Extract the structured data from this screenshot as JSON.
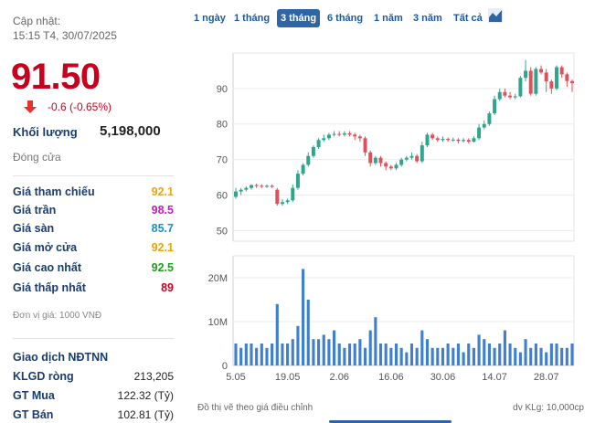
{
  "header": {
    "updated_label": "Cập nhật:",
    "updated_time": "15:15 T4, 30/07/2025"
  },
  "quote": {
    "price": "91.50",
    "change": "-0.6 (-0.65%)",
    "volume_label": "Khối lượng",
    "volume_value": "5,198,000",
    "status": "Đóng cửa"
  },
  "prices": [
    {
      "label": "Giá tham chiếu",
      "value": "92.1",
      "color": "#f0a500"
    },
    {
      "label": "Giá trần",
      "value": "98.5",
      "color": "#c41bc4"
    },
    {
      "label": "Giá sàn",
      "value": "85.7",
      "color": "#1a8fc7"
    },
    {
      "label": "Giá mở cửa",
      "value": "92.1",
      "color": "#f0a500"
    },
    {
      "label": "Giá cao nhất",
      "value": "92.5",
      "color": "#1e9e1e"
    },
    {
      "label": "Giá thấp nhất",
      "value": "89",
      "color": "#c8001e"
    }
  ],
  "unit_note": "Đơn vị giá: 1000 VNĐ",
  "foreign": {
    "title": "Giao dịch NĐTNN",
    "rows": [
      {
        "label": "KLGD ròng",
        "value": "213,205"
      },
      {
        "label": "GT Mua",
        "value": "122.32 (Tỷ)"
      },
      {
        "label": "GT Bán",
        "value": "102.81 (Tỷ)"
      }
    ]
  },
  "ranges": [
    "1 ngày",
    "1 tháng",
    "3 tháng",
    "6 tháng",
    "1 năm",
    "3 năm",
    "Tất cả"
  ],
  "active_range": "3 tháng",
  "colors": {
    "up": "#2ea58d",
    "down": "#e0505a",
    "volume": "#3f7fd0",
    "accent": "#2f65a5"
  },
  "chart_footer": {
    "note": "Đồ thị vẽ theo giá điều chỉnh",
    "volume_unit": "dv KLg: 10,000cp"
  },
  "chart_data": {
    "type": "candlestick",
    "price_ticks": [
      50,
      60,
      70,
      80,
      90
    ],
    "price_ylim": [
      47,
      100
    ],
    "volume_ticks": [
      "0",
      "10M",
      "20M"
    ],
    "volume_tick_values": [
      0,
      10,
      20
    ],
    "volume_ylim": [
      0,
      25
    ],
    "x_ticks": [
      "5.05",
      "19.05",
      "2.06",
      "16.06",
      "30.06",
      "14.07",
      "28.07"
    ],
    "x_tick_index": [
      0,
      10,
      20,
      30,
      40,
      50,
      60
    ],
    "candles": [
      [
        59.5,
        61,
        62,
        59
      ],
      [
        61,
        61.5,
        62,
        60
      ],
      [
        61.5,
        62,
        62.5,
        61
      ],
      [
        62,
        62.8,
        63,
        61.5
      ],
      [
        62.8,
        62.6,
        63.2,
        62
      ],
      [
        62.6,
        62.4,
        63,
        62
      ],
      [
        62.4,
        62.6,
        63,
        62
      ],
      [
        62.6,
        62.3,
        63,
        62
      ],
      [
        61.5,
        57.5,
        62,
        57
      ],
      [
        57.5,
        58,
        58.8,
        57
      ],
      [
        58,
        58.5,
        59,
        57.5
      ],
      [
        58.5,
        62,
        63,
        58
      ],
      [
        62,
        66,
        67,
        61.5
      ],
      [
        66,
        68.5,
        69,
        65.5
      ],
      [
        68.5,
        71,
        72,
        68
      ],
      [
        71,
        73.5,
        74,
        70.5
      ],
      [
        73.5,
        75.5,
        76,
        73
      ],
      [
        75.5,
        76,
        77,
        75
      ],
      [
        76,
        77,
        77.5,
        75.5
      ],
      [
        77,
        77.2,
        78,
        76.5
      ],
      [
        77.2,
        77,
        78,
        76.5
      ],
      [
        77,
        77.4,
        78,
        76.5
      ],
      [
        77.4,
        77,
        78,
        76.5
      ],
      [
        77,
        76.5,
        77.5,
        75.5
      ],
      [
        76.5,
        76,
        77,
        75
      ],
      [
        76,
        72,
        76.5,
        71
      ],
      [
        72,
        69,
        72.5,
        68
      ],
      [
        69,
        70.5,
        71,
        68.5
      ],
      [
        70.5,
        69,
        71,
        68
      ],
      [
        69,
        68,
        69.5,
        67
      ],
      [
        68,
        67.5,
        68.5,
        67
      ],
      [
        67.5,
        68.5,
        69,
        67
      ],
      [
        68.5,
        70,
        70.5,
        68
      ],
      [
        70,
        70.5,
        71,
        69.5
      ],
      [
        70.5,
        71,
        72,
        70
      ],
      [
        71,
        69.5,
        71.5,
        69
      ],
      [
        69.5,
        74,
        75,
        69
      ],
      [
        74,
        77,
        77.5,
        73.5
      ],
      [
        77,
        76,
        77.5,
        75.5
      ],
      [
        76,
        75.5,
        76.5,
        75
      ],
      [
        75.5,
        75.8,
        76.5,
        75
      ],
      [
        75.8,
        75.5,
        76.2,
        75
      ],
      [
        75.5,
        75.6,
        76.2,
        75
      ],
      [
        75.6,
        75.2,
        76,
        74.5
      ],
      [
        75.2,
        75.5,
        76,
        74.8
      ],
      [
        75.5,
        75,
        76,
        74.5
      ],
      [
        75,
        76,
        76.5,
        74.8
      ],
      [
        76,
        79,
        80,
        75.5
      ],
      [
        79,
        80,
        81,
        78.5
      ],
      [
        80,
        83,
        83.5,
        79.5
      ],
      [
        83,
        87,
        88,
        82.5
      ],
      [
        87,
        89,
        90,
        86.5
      ],
      [
        89,
        88,
        90,
        87.5
      ],
      [
        88,
        87.5,
        89,
        87
      ],
      [
        87.5,
        87.8,
        88.5,
        87
      ],
      [
        87.8,
        93,
        93.5,
        87.5
      ],
      [
        93,
        95,
        98,
        92
      ],
      [
        95,
        88.5,
        96,
        88
      ],
      [
        88.5,
        95.5,
        96,
        88
      ],
      [
        95.5,
        94.5,
        96.5,
        94
      ],
      [
        94.5,
        92,
        95.5,
        89
      ],
      [
        92,
        90,
        92.5,
        88.5
      ],
      [
        90,
        96,
        96.5,
        89.5
      ],
      [
        96,
        94,
        96.5,
        93
      ],
      [
        94,
        92.1,
        94.5,
        90.5
      ],
      [
        92.1,
        91.5,
        92.5,
        89
      ]
    ],
    "volumes": [
      5,
      4,
      5,
      5,
      4,
      5,
      4,
      5,
      14,
      5,
      5,
      6,
      9,
      22,
      15,
      6,
      6,
      7,
      6,
      8,
      5,
      4,
      5,
      5,
      6,
      4,
      8,
      11,
      5,
      5,
      4,
      5,
      4,
      3,
      5,
      4,
      8,
      6,
      4,
      4,
      4,
      5,
      4,
      5,
      3,
      5,
      4,
      7,
      6,
      5,
      4,
      5,
      8,
      5,
      4,
      3,
      6,
      4,
      5,
      4,
      3,
      5,
      5,
      4,
      4,
      5
    ]
  }
}
